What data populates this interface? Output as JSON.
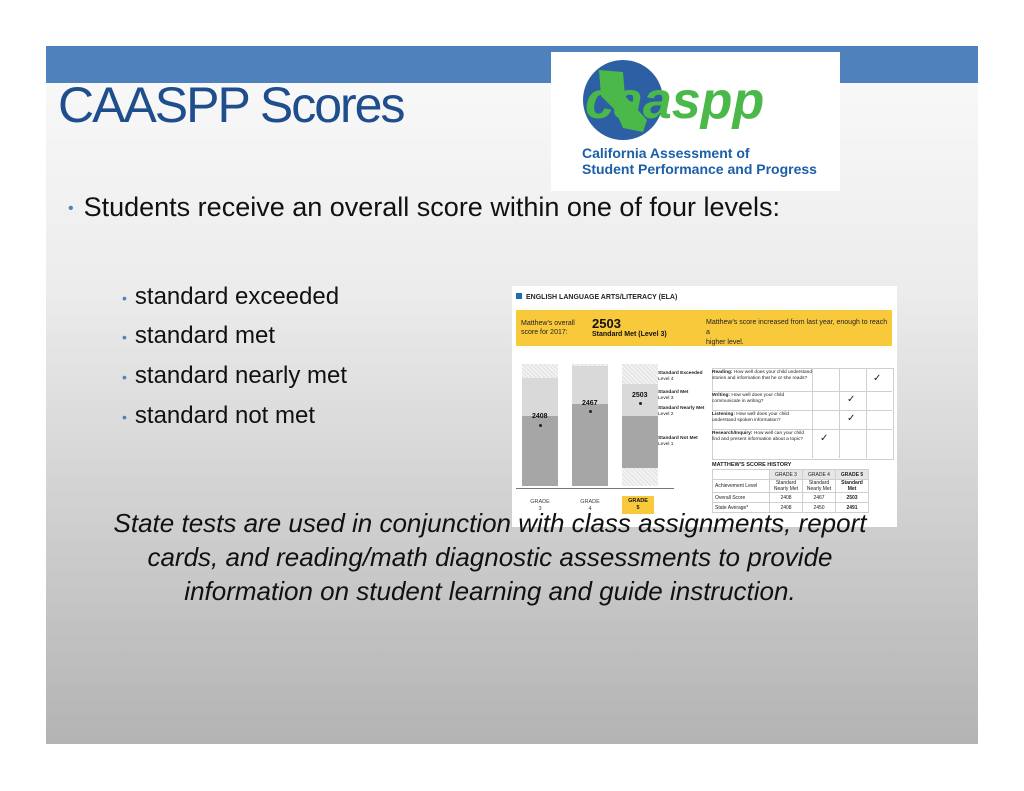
{
  "slide": {
    "title": "CAASPP Scores",
    "logo": {
      "wordmark": "caaspp",
      "line1": "California Assessment of",
      "line2": "Student Performance and Progress"
    },
    "main_bullet": "Students receive an overall score within one of four levels:",
    "levels": [
      "standard exceeded",
      "standard met",
      "standard nearly met",
      "standard not met"
    ],
    "note": "State tests are used in conjunction with class assignments, report  cards, and reading/math diagnostic assessments to provide  information on student learning and guide instruction.",
    "colors": {
      "accent_bar": "#4f81bd",
      "title": "#1f4e8c",
      "highlight": "#f9c93c"
    }
  },
  "report_card": {
    "header": "ENGLISH LANGUAGE ARTS/LITERACY (ELA)",
    "overall_label_1": "Matthew's overall",
    "overall_label_2": "score for 2017:",
    "overall_score": "2503",
    "overall_level": "Standard Met (Level 3)",
    "message_1": "Matthew's score increased from last year, enough to reach a",
    "message_2": "higher level.",
    "bars": [
      {
        "grade_label": "GRADE",
        "grade": "3",
        "score": "2408",
        "value": 2408
      },
      {
        "grade_label": "GRADE",
        "grade": "4",
        "score": "2467",
        "value": 2467
      },
      {
        "grade_label": "GRADE",
        "grade": "5",
        "score": "2503",
        "value": 2503
      }
    ],
    "level_labels": [
      {
        "name": "Standard Exceeded",
        "level": "Level 4"
      },
      {
        "name": "Standard Met",
        "level": "Level 3"
      },
      {
        "name": "Standard Nearly Met",
        "level": "Level 2"
      },
      {
        "name": "Standard Not Met",
        "level": "Level 1"
      }
    ],
    "areas": [
      {
        "name": "Reading:",
        "text": "How well does your child understand stories and information that he or she reads?"
      },
      {
        "name": "Writing:",
        "text": "How well does your child communicate in writing?"
      },
      {
        "name": "Listening:",
        "text": "How well does your child understand spoken information?"
      },
      {
        "name": "Research/Inquiry:",
        "text": "How well can your child find and present information about a topic?"
      }
    ],
    "check": "✓",
    "history_title": "MATTHEW'S SCORE HISTORY",
    "history_headers": [
      "GRADE 3",
      "GRADE 4",
      "GRADE 5"
    ],
    "history_rows": [
      {
        "label": "Achievement Level",
        "values": [
          "Standard Nearly Met",
          "Standard Nearly Met",
          "Standard Met"
        ]
      },
      {
        "label": "Overall Score",
        "values": [
          "2408",
          "2467",
          "2503"
        ]
      },
      {
        "label": "State Average*",
        "values": [
          "2408",
          "2450",
          "2491"
        ]
      }
    ]
  }
}
